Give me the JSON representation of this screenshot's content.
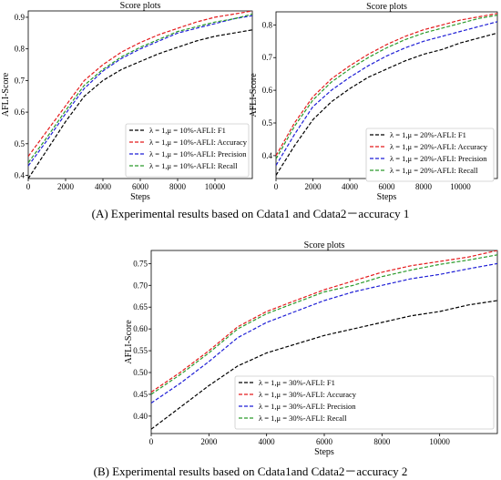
{
  "captions": {
    "a": "(A) Experimental results based on Cdata1 and Cdata2－accuracy 1",
    "b": "(B) Experimental results based on Cdata1and Cdata2－accuracy 2"
  },
  "chart_data": [
    {
      "type": "line",
      "title": "Score plots",
      "xlabel": "Steps",
      "ylabel": "AFLI-Score",
      "xlim": [
        0,
        12000
      ],
      "ylim": [
        0.39,
        0.92
      ],
      "xticks": [
        0,
        2000,
        4000,
        6000,
        8000,
        10000
      ],
      "yticks": [
        0.4,
        0.5,
        0.6,
        0.7,
        0.8,
        0.9
      ],
      "grid": false,
      "legend_position": "lower-right",
      "x": [
        0,
        1000,
        2000,
        3000,
        4000,
        5000,
        6000,
        7000,
        8000,
        9000,
        10000,
        11000,
        12000
      ],
      "series": [
        {
          "name": "λ = 1,μ = 10%-AFLI: F1",
          "color": "#000000",
          "values": [
            0.39,
            0.48,
            0.57,
            0.65,
            0.7,
            0.735,
            0.76,
            0.785,
            0.805,
            0.825,
            0.84,
            0.85,
            0.86
          ]
        },
        {
          "name": "λ = 1,μ = 10%-AFLI: Accuracy",
          "color": "#e41a1c",
          "values": [
            0.46,
            0.54,
            0.62,
            0.7,
            0.75,
            0.79,
            0.82,
            0.845,
            0.865,
            0.885,
            0.9,
            0.91,
            0.92
          ]
        },
        {
          "name": "λ = 1,μ = 10%-AFLI: Precision",
          "color": "#1f1fd6",
          "values": [
            0.43,
            0.51,
            0.595,
            0.675,
            0.73,
            0.77,
            0.8,
            0.825,
            0.85,
            0.865,
            0.88,
            0.895,
            0.905
          ]
        },
        {
          "name": "λ = 1,μ = 10%-AFLI: Recall",
          "color": "#2a9a2a",
          "values": [
            0.44,
            0.52,
            0.605,
            0.685,
            0.735,
            0.775,
            0.805,
            0.83,
            0.855,
            0.87,
            0.885,
            0.895,
            0.91
          ]
        }
      ]
    },
    {
      "type": "line",
      "title": "Score plots",
      "xlabel": "Steps",
      "ylabel": "AFLI-Score",
      "xlim": [
        0,
        12000
      ],
      "ylim": [
        0.33,
        0.84
      ],
      "xticks": [
        0,
        2000,
        4000,
        6000,
        8000,
        10000
      ],
      "yticks": [
        0.4,
        0.5,
        0.6,
        0.7,
        0.8
      ],
      "grid": false,
      "legend_position": "lower-right",
      "x": [
        0,
        1000,
        2000,
        3000,
        4000,
        5000,
        6000,
        7000,
        8000,
        9000,
        10000,
        11000,
        12000
      ],
      "series": [
        {
          "name": "λ = 1,μ = 20%-AFLI: F1",
          "color": "#000000",
          "values": [
            0.34,
            0.43,
            0.51,
            0.565,
            0.605,
            0.64,
            0.665,
            0.69,
            0.71,
            0.725,
            0.745,
            0.76,
            0.775
          ]
        },
        {
          "name": "λ = 1,μ = 20%-AFLI: Accuracy",
          "color": "#e41a1c",
          "values": [
            0.4,
            0.5,
            0.58,
            0.635,
            0.675,
            0.71,
            0.74,
            0.765,
            0.785,
            0.8,
            0.815,
            0.825,
            0.835
          ]
        },
        {
          "name": "λ = 1,μ = 20%-AFLI: Precision",
          "color": "#1f1fd6",
          "values": [
            0.37,
            0.465,
            0.55,
            0.6,
            0.64,
            0.675,
            0.705,
            0.73,
            0.75,
            0.765,
            0.78,
            0.795,
            0.81
          ]
        },
        {
          "name": "λ = 1,μ = 20%-AFLI: Recall",
          "color": "#2a9a2a",
          "values": [
            0.39,
            0.49,
            0.57,
            0.625,
            0.665,
            0.7,
            0.73,
            0.755,
            0.775,
            0.79,
            0.805,
            0.82,
            0.83
          ]
        }
      ]
    },
    {
      "type": "line",
      "title": "Score plots",
      "xlabel": "Steps",
      "ylabel": "AFLI-Score",
      "xlim": [
        0,
        12000
      ],
      "ylim": [
        0.36,
        0.78
      ],
      "xticks": [
        0,
        2000,
        4000,
        6000,
        8000,
        10000
      ],
      "yticks": [
        0.4,
        0.45,
        0.5,
        0.55,
        0.6,
        0.65,
        0.7,
        0.75
      ],
      "grid": false,
      "legend_position": "lower-right",
      "x": [
        0,
        1000,
        2000,
        3000,
        4000,
        5000,
        6000,
        7000,
        8000,
        9000,
        10000,
        11000,
        12000
      ],
      "series": [
        {
          "name": "λ = 1,μ = 30%-AFLI: F1",
          "color": "#000000",
          "values": [
            0.37,
            0.42,
            0.47,
            0.515,
            0.545,
            0.565,
            0.585,
            0.6,
            0.615,
            0.63,
            0.64,
            0.655,
            0.665
          ]
        },
        {
          "name": "λ = 1,μ = 30%-AFLI: Accuracy",
          "color": "#e41a1c",
          "values": [
            0.455,
            0.5,
            0.55,
            0.605,
            0.64,
            0.665,
            0.69,
            0.71,
            0.73,
            0.745,
            0.755,
            0.765,
            0.78
          ]
        },
        {
          "name": "λ = 1,μ = 30%-AFLI: Precision",
          "color": "#1f1fd6",
          "values": [
            0.43,
            0.475,
            0.525,
            0.58,
            0.615,
            0.64,
            0.665,
            0.685,
            0.7,
            0.715,
            0.725,
            0.738,
            0.75
          ]
        },
        {
          "name": "λ = 1,μ = 30%-AFLI: Recall",
          "color": "#2a9a2a",
          "values": [
            0.45,
            0.495,
            0.545,
            0.6,
            0.635,
            0.66,
            0.685,
            0.7,
            0.72,
            0.735,
            0.748,
            0.758,
            0.77
          ]
        }
      ]
    }
  ]
}
